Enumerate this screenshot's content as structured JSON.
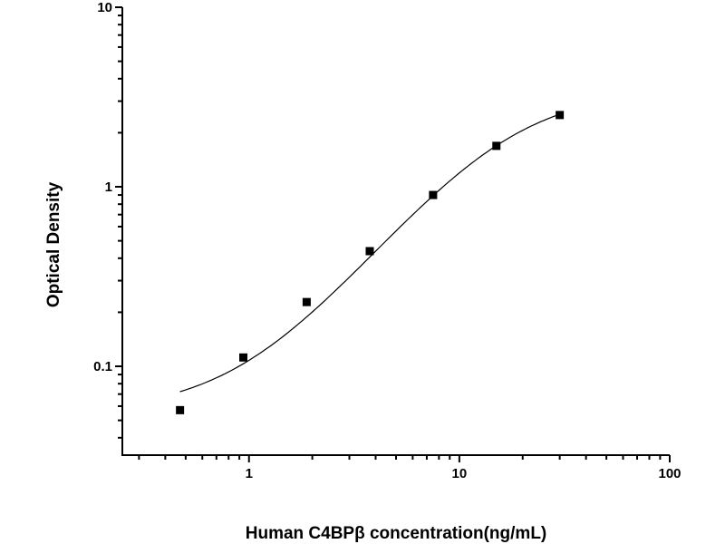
{
  "chart_data": {
    "type": "scatter",
    "title": "",
    "xlabel": "Human C4BPβ  concentration(ng/mL)",
    "ylabel": "Optical Density",
    "xscale": "log",
    "yscale": "log",
    "xlim": [
      0.25,
      100
    ],
    "ylim": [
      0.032,
      10
    ],
    "xticks": [
      {
        "value": 1,
        "label": "1"
      },
      {
        "value": 10,
        "label": "10"
      },
      {
        "value": 100,
        "label": "100"
      }
    ],
    "yticks": [
      {
        "value": 0.1,
        "label": "0.1"
      },
      {
        "value": 1,
        "label": "1"
      },
      {
        "value": 10,
        "label": "10"
      }
    ],
    "grid": false,
    "legend": "none",
    "marker": "square",
    "color": "#000000",
    "series": [
      {
        "x": [
          0.47,
          0.94,
          1.88,
          3.75,
          7.5,
          15,
          30
        ],
        "y": [
          0.057,
          0.112,
          0.228,
          0.438,
          0.9,
          1.69,
          2.51
        ]
      }
    ],
    "curve": {
      "model": "4PL",
      "a": 0.055,
      "b": 1.5,
      "c": 16,
      "d": 3.5,
      "x_range": [
        0.47,
        30
      ]
    }
  }
}
